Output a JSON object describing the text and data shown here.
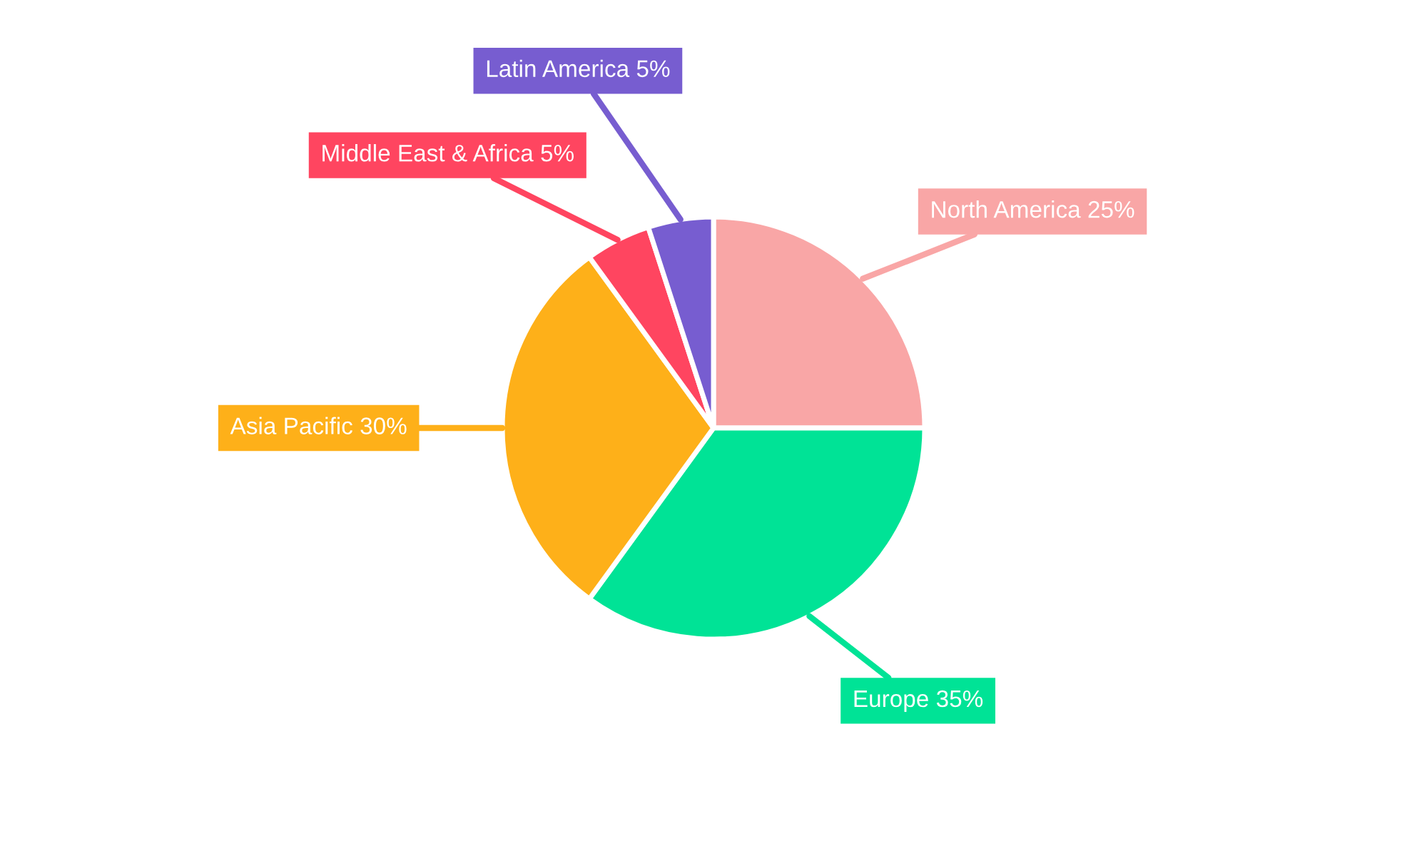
{
  "chart_data": {
    "type": "pie",
    "categories": [
      "North America",
      "Europe",
      "Asia Pacific",
      "Middle East & Africa",
      "Latin America"
    ],
    "values": [
      25,
      35,
      30,
      5,
      5
    ],
    "colors": [
      "#f9a6a6",
      "#00e396",
      "#feb019",
      "#ff4560",
      "#775dd0"
    ],
    "value_labels": [
      "25%",
      "35%",
      "30%",
      "5%",
      "5%"
    ]
  }
}
